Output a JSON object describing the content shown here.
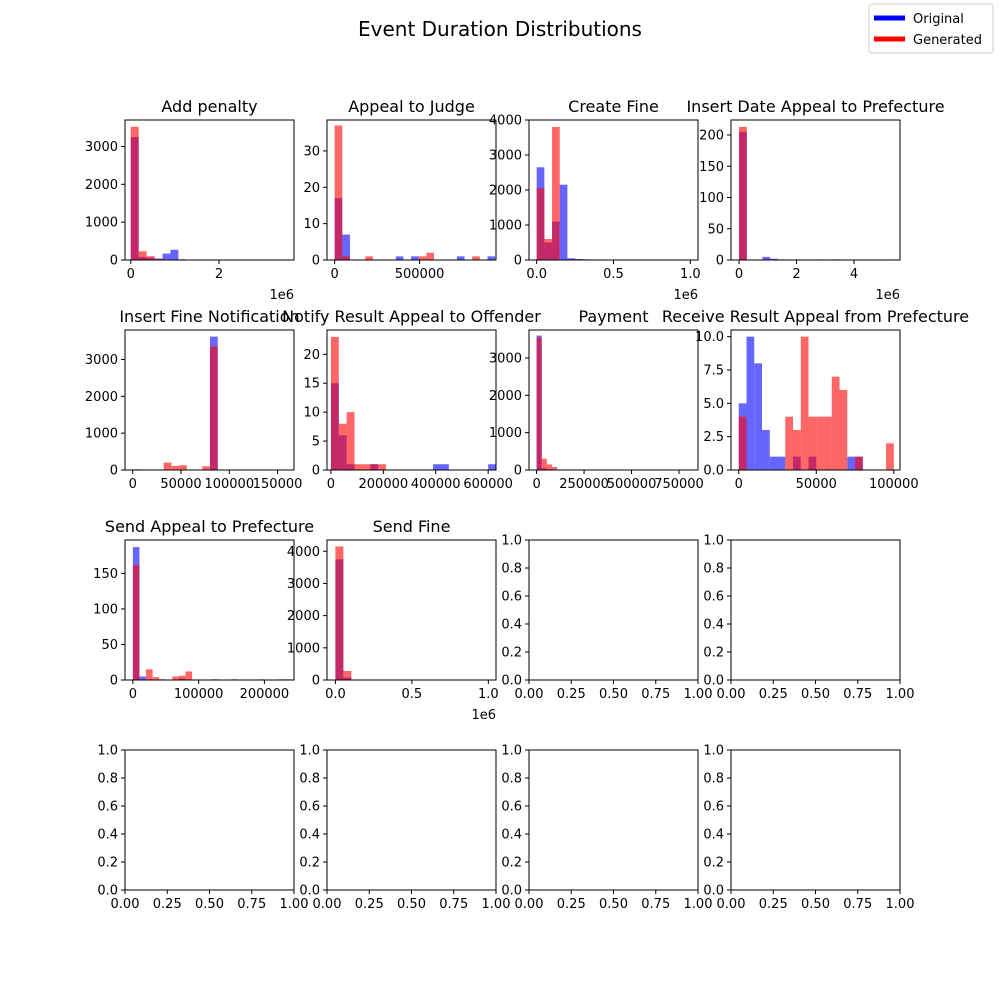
{
  "figure": {
    "title": "Event Duration Distributions"
  },
  "colors": {
    "original": "#0000ff",
    "generated": "#ff0000",
    "bar_alpha": 0.6
  },
  "legend": {
    "placement": "top-right",
    "items": [
      {
        "label": "Original",
        "color": "#0000ff"
      },
      {
        "label": "Generated",
        "color": "#ff0000"
      }
    ]
  },
  "chart_data": [
    {
      "type": "histogram",
      "title": "Add penalty",
      "xlim": [
        -130000,
        3700000
      ],
      "ylim": [
        0,
        3700
      ],
      "xticks": [
        {
          "v": 0,
          "t": "0"
        },
        {
          "v": 2000000,
          "t": "2"
        }
      ],
      "yticks": [
        {
          "v": 0,
          "t": "0"
        },
        {
          "v": 1000,
          "t": "1000"
        },
        {
          "v": 2000,
          "t": "2000"
        },
        {
          "v": 3000,
          "t": "3000"
        }
      ],
      "offset": "1e6",
      "bin_width": 180000,
      "series": [
        {
          "name": "Original",
          "bins": [
            [
              0,
              3250
            ],
            [
              180000,
              80
            ],
            [
              360000,
              60
            ],
            [
              540000,
              40
            ],
            [
              720000,
              170
            ],
            [
              900000,
              270
            ],
            [
              1080000,
              20
            ]
          ]
        },
        {
          "name": "Generated",
          "bins": [
            [
              0,
              3520
            ],
            [
              180000,
              230
            ],
            [
              360000,
              100
            ],
            [
              540000,
              20
            ]
          ]
        }
      ]
    },
    {
      "type": "histogram",
      "title": "Appeal to Judge",
      "xlim": [
        -45000,
        950000
      ],
      "ylim": [
        0,
        38.5
      ],
      "xticks": [
        {
          "v": 0,
          "t": "0"
        },
        {
          "v": 500000,
          "t": "500000"
        }
      ],
      "yticks": [
        {
          "v": 0,
          "t": "0"
        },
        {
          "v": 10,
          "t": "10"
        },
        {
          "v": 20,
          "t": "20"
        },
        {
          "v": 30,
          "t": "30"
        }
      ],
      "offset": "",
      "bin_width": 45000,
      "series": [
        {
          "name": "Original",
          "bins": [
            [
              0,
              17
            ],
            [
              45000,
              7
            ],
            [
              360000,
              1
            ],
            [
              450000,
              1
            ],
            [
              720000,
              1
            ],
            [
              900000,
              1
            ]
          ]
        },
        {
          "name": "Generated",
          "bins": [
            [
              0,
              37
            ],
            [
              45000,
              1
            ],
            [
              180000,
              1
            ],
            [
              495000,
              1
            ],
            [
              540000,
              2
            ],
            [
              810000,
              1
            ]
          ]
        }
      ]
    },
    {
      "type": "histogram",
      "title": "Create Fine",
      "xlim": [
        -50000,
        1050000
      ],
      "ylim": [
        0,
        4000
      ],
      "xticks": [
        {
          "v": 0,
          "t": "0.0"
        },
        {
          "v": 500000,
          "t": "0.5"
        },
        {
          "v": 1000000,
          "t": "1.0"
        }
      ],
      "yticks": [
        {
          "v": 0,
          "t": "0"
        },
        {
          "v": 1000,
          "t": "1000"
        },
        {
          "v": 2000,
          "t": "2000"
        },
        {
          "v": 3000,
          "t": "3000"
        },
        {
          "v": 4000,
          "t": "4000"
        }
      ],
      "offset": "1e6",
      "bin_width": 50000,
      "series": [
        {
          "name": "Original",
          "bins": [
            [
              0,
              2650
            ],
            [
              50000,
              500
            ],
            [
              100000,
              1100
            ],
            [
              150000,
              2150
            ],
            [
              200000,
              50
            ],
            [
              250000,
              30
            ],
            [
              300000,
              20
            ]
          ]
        },
        {
          "name": "Generated",
          "bins": [
            [
              0,
              2050
            ],
            [
              50000,
              600
            ],
            [
              100000,
              3800
            ]
          ]
        }
      ]
    },
    {
      "type": "histogram",
      "title": "Insert Date Appeal to Prefecture",
      "xlim": [
        -280000,
        5600000
      ],
      "ylim": [
        0,
        224
      ],
      "xticks": [
        {
          "v": 0,
          "t": "0"
        },
        {
          "v": 2000000,
          "t": "2"
        },
        {
          "v": 4000000,
          "t": "4"
        }
      ],
      "yticks": [
        {
          "v": 0,
          "t": "0"
        },
        {
          "v": 50,
          "t": "50"
        },
        {
          "v": 100,
          "t": "100"
        },
        {
          "v": 150,
          "t": "150"
        },
        {
          "v": 200,
          "t": "200"
        }
      ],
      "offset": "1e6",
      "bin_width": 270000,
      "series": [
        {
          "name": "Original",
          "bins": [
            [
              0,
              205
            ],
            [
              810000,
              5
            ],
            [
              1080000,
              2
            ],
            [
              1350000,
              1
            ]
          ]
        },
        {
          "name": "Generated",
          "bins": [
            [
              0,
              213
            ],
            [
              1890000,
              1
            ],
            [
              2700000,
              1
            ],
            [
              3240000,
              1
            ],
            [
              5130000,
              1
            ]
          ]
        }
      ]
    },
    {
      "type": "histogram",
      "title": "Insert Fine Notification",
      "xlim": [
        -8000,
        167000
      ],
      "ylim": [
        0,
        3800
      ],
      "xticks": [
        {
          "v": 0,
          "t": "0"
        },
        {
          "v": 50000,
          "t": "50000"
        },
        {
          "v": 100000,
          "t": "100000"
        },
        {
          "v": 150000,
          "t": "150000"
        }
      ],
      "yticks": [
        {
          "v": 0,
          "t": "0"
        },
        {
          "v": 1000,
          "t": "1000"
        },
        {
          "v": 2000,
          "t": "2000"
        },
        {
          "v": 3000,
          "t": "3000"
        }
      ],
      "offset": "",
      "bin_width": 8000,
      "series": [
        {
          "name": "Original",
          "bins": [
            [
              80000,
              3620
            ]
          ]
        },
        {
          "name": "Generated",
          "bins": [
            [
              0,
              20
            ],
            [
              32000,
              200
            ],
            [
              40000,
              110
            ],
            [
              48000,
              130
            ],
            [
              72000,
              100
            ],
            [
              80000,
              3350
            ]
          ]
        }
      ]
    },
    {
      "type": "histogram",
      "title": "Notify Result Appeal to Offender",
      "xlim": [
        -15000,
        630000
      ],
      "ylim": [
        0,
        24.2
      ],
      "xticks": [
        {
          "v": 0,
          "t": "0"
        },
        {
          "v": 200000,
          "t": "200000"
        },
        {
          "v": 400000,
          "t": "400000"
        },
        {
          "v": 600000,
          "t": "600000"
        }
      ],
      "yticks": [
        {
          "v": 0,
          "t": "0"
        },
        {
          "v": 5,
          "t": "5"
        },
        {
          "v": 10,
          "t": "10"
        },
        {
          "v": 15,
          "t": "15"
        },
        {
          "v": 20,
          "t": "20"
        }
      ],
      "offset": "",
      "bin_width": 30000,
      "series": [
        {
          "name": "Original",
          "bins": [
            [
              0,
              15
            ],
            [
              30000,
              6
            ],
            [
              60000,
              1
            ],
            [
              150000,
              1
            ],
            [
              390000,
              1
            ],
            [
              420000,
              1
            ],
            [
              600000,
              1
            ]
          ]
        },
        {
          "name": "Generated",
          "bins": [
            [
              0,
              23
            ],
            [
              30000,
              8
            ],
            [
              60000,
              10
            ],
            [
              90000,
              1
            ],
            [
              120000,
              1
            ],
            [
              150000,
              1
            ],
            [
              180000,
              1
            ]
          ]
        }
      ]
    },
    {
      "type": "histogram",
      "title": "Payment",
      "xlim": [
        -40000,
        850000
      ],
      "ylim": [
        0,
        3750
      ],
      "xticks": [
        {
          "v": 0,
          "t": "0"
        },
        {
          "v": 250000,
          "t": "250000"
        },
        {
          "v": 500000,
          "t": "500000"
        },
        {
          "v": 750000,
          "t": "750000"
        }
      ],
      "yticks": [
        {
          "v": 0,
          "t": "0"
        },
        {
          "v": 1000,
          "t": "1000"
        },
        {
          "v": 2000,
          "t": "2000"
        },
        {
          "v": 3000,
          "t": "3000"
        }
      ],
      "offset": "",
      "bin_width": 27000,
      "series": [
        {
          "name": "Original",
          "bins": [
            [
              0,
              3600
            ],
            [
              27000,
              50
            ],
            [
              54000,
              20
            ]
          ]
        },
        {
          "name": "Generated",
          "bins": [
            [
              0,
              3550
            ],
            [
              27000,
              300
            ],
            [
              54000,
              150
            ],
            [
              81000,
              80
            ]
          ]
        }
      ]
    },
    {
      "type": "histogram",
      "title": "Receive Result Appeal from Prefecture",
      "xlim": [
        -5000,
        104000
      ],
      "ylim": [
        0,
        10.5
      ],
      "xticks": [
        {
          "v": 0,
          "t": "0"
        },
        {
          "v": 50000,
          "t": "50000"
        },
        {
          "v": 100000,
          "t": "100000"
        }
      ],
      "yticks": [
        {
          "v": 0,
          "t": "0.0"
        },
        {
          "v": 2.5,
          "t": "2.5"
        },
        {
          "v": 5,
          "t": "5.0"
        },
        {
          "v": 7.5,
          "t": "7.5"
        },
        {
          "v": 10,
          "t": "10.0"
        }
      ],
      "offset": "",
      "bin_width": 5000,
      "series": [
        {
          "name": "Original",
          "bins": [
            [
              0,
              5
            ],
            [
              5000,
              10
            ],
            [
              10000,
              8
            ],
            [
              15000,
              3
            ],
            [
              20000,
              1
            ],
            [
              25000,
              1
            ],
            [
              35000,
              1
            ],
            [
              45000,
              1
            ],
            [
              70000,
              1
            ],
            [
              75000,
              1
            ]
          ]
        },
        {
          "name": "Generated",
          "bins": [
            [
              0,
              4
            ],
            [
              30000,
              4
            ],
            [
              35000,
              3
            ],
            [
              40000,
              10
            ],
            [
              45000,
              4
            ],
            [
              50000,
              4
            ],
            [
              55000,
              4
            ],
            [
              60000,
              7
            ],
            [
              65000,
              6
            ],
            [
              75000,
              1
            ],
            [
              95000,
              2
            ]
          ]
        }
      ]
    },
    {
      "type": "histogram",
      "title": "Send Appeal to Prefecture",
      "xlim": [
        -12000,
        245000
      ],
      "ylim": [
        0,
        197
      ],
      "xticks": [
        {
          "v": 0,
          "t": "0"
        },
        {
          "v": 100000,
          "t": "100000"
        },
        {
          "v": 200000,
          "t": "200000"
        }
      ],
      "yticks": [
        {
          "v": 0,
          "t": "0"
        },
        {
          "v": 50,
          "t": "50"
        },
        {
          "v": 100,
          "t": "100"
        },
        {
          "v": 150,
          "t": "150"
        }
      ],
      "offset": "",
      "bin_width": 10000,
      "series": [
        {
          "name": "Original",
          "bins": [
            [
              0,
              187
            ],
            [
              10000,
              5
            ],
            [
              40000,
              1
            ],
            [
              70000,
              2
            ],
            [
              120000,
              1
            ],
            [
              150000,
              1
            ],
            [
              230000,
              1
            ]
          ]
        },
        {
          "name": "Generated",
          "bins": [
            [
              0,
              162
            ],
            [
              20000,
              15
            ],
            [
              30000,
              4
            ],
            [
              60000,
              5
            ],
            [
              70000,
              6
            ],
            [
              80000,
              12
            ],
            [
              190000,
              1
            ],
            [
              220000,
              1
            ]
          ]
        }
      ]
    },
    {
      "type": "histogram",
      "title": "Send Fine",
      "xlim": [
        -55000,
        1050000
      ],
      "ylim": [
        0,
        4350
      ],
      "xticks": [
        {
          "v": 0,
          "t": "0.0"
        },
        {
          "v": 500000,
          "t": "0.5"
        },
        {
          "v": 1000000,
          "t": "1.0"
        }
      ],
      "yticks": [
        {
          "v": 0,
          "t": "0"
        },
        {
          "v": 1000,
          "t": "1000"
        },
        {
          "v": 2000,
          "t": "2000"
        },
        {
          "v": 3000,
          "t": "3000"
        },
        {
          "v": 4000,
          "t": "4000"
        }
      ],
      "offset": "1e6",
      "bin_width": 52000,
      "series": [
        {
          "name": "Original",
          "bins": [
            [
              0,
              3750
            ],
            [
              52000,
              80
            ]
          ]
        },
        {
          "name": "Generated",
          "bins": [
            [
              0,
              4150
            ],
            [
              52000,
              280
            ]
          ]
        }
      ]
    },
    {
      "type": "empty",
      "title": "",
      "xlim": [
        0,
        1
      ],
      "ylim": [
        0,
        1
      ],
      "ticks": [
        "0.0",
        "0.2",
        "0.4",
        "0.6",
        "0.8",
        "1.0"
      ],
      "xticks_labels": [
        "0.00",
        "0.25",
        "0.50",
        "0.75",
        "1.00"
      ]
    },
    {
      "type": "empty",
      "title": "",
      "xlim": [
        0,
        1
      ],
      "ylim": [
        0,
        1
      ],
      "ticks": [
        "0.0",
        "0.2",
        "0.4",
        "0.6",
        "0.8",
        "1.0"
      ],
      "xticks_labels": [
        "0.00",
        "0.25",
        "0.50",
        "0.75",
        "1.00"
      ]
    },
    {
      "type": "empty",
      "title": "",
      "xlim": [
        0,
        1
      ],
      "ylim": [
        0,
        1
      ],
      "ticks": [
        "0.0",
        "0.2",
        "0.4",
        "0.6",
        "0.8",
        "1.0"
      ],
      "xticks_labels": [
        "0.00",
        "0.25",
        "0.50",
        "0.75",
        "1.00"
      ]
    },
    {
      "type": "empty",
      "title": "",
      "xlim": [
        0,
        1
      ],
      "ylim": [
        0,
        1
      ],
      "ticks": [
        "0.0",
        "0.2",
        "0.4",
        "0.6",
        "0.8",
        "1.0"
      ],
      "xticks_labels": [
        "0.00",
        "0.25",
        "0.50",
        "0.75",
        "1.00"
      ]
    },
    {
      "type": "empty",
      "title": "",
      "xlim": [
        0,
        1
      ],
      "ylim": [
        0,
        1
      ],
      "ticks": [
        "0.0",
        "0.2",
        "0.4",
        "0.6",
        "0.8",
        "1.0"
      ],
      "xticks_labels": [
        "0.00",
        "0.25",
        "0.50",
        "0.75",
        "1.00"
      ]
    },
    {
      "type": "empty",
      "title": "",
      "xlim": [
        0,
        1
      ],
      "ylim": [
        0,
        1
      ],
      "ticks": [
        "0.0",
        "0.2",
        "0.4",
        "0.6",
        "0.8",
        "1.0"
      ],
      "xticks_labels": [
        "0.00",
        "0.25",
        "0.50",
        "0.75",
        "1.00"
      ]
    }
  ]
}
